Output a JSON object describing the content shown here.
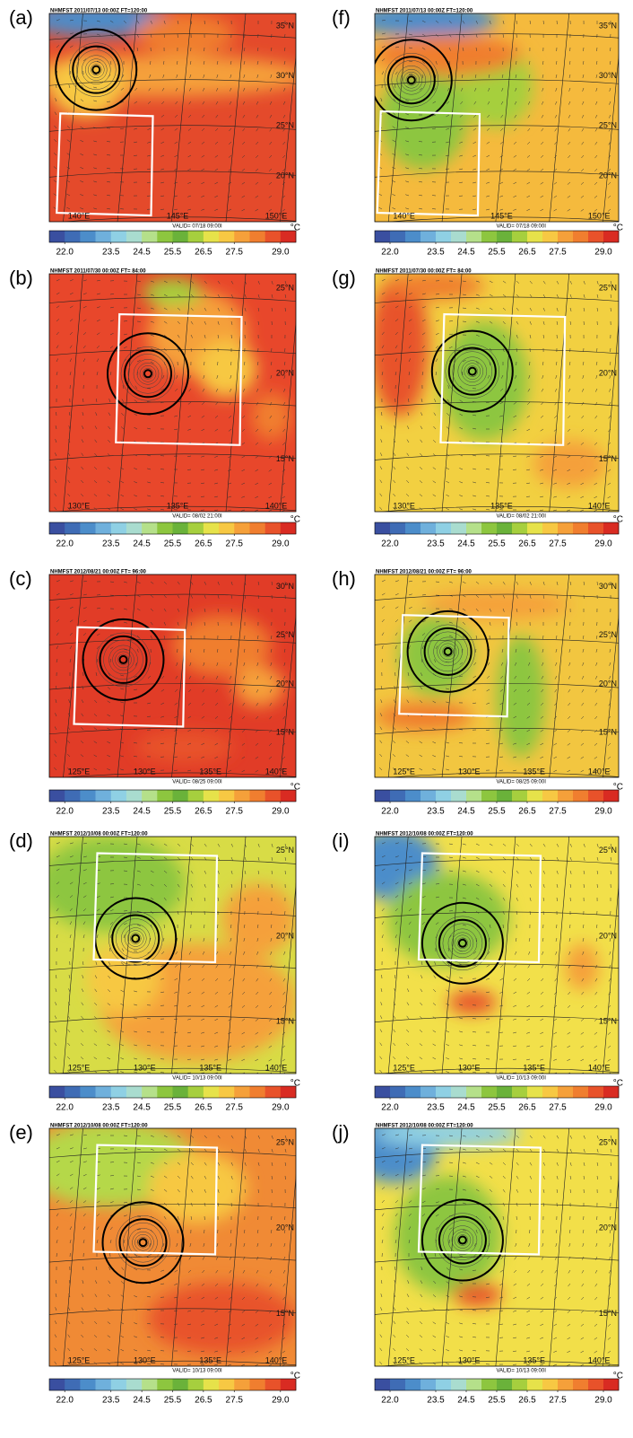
{
  "panels": [
    {
      "label": "(a)",
      "header": "NHMFST 2011/07/13 00:00Z FT=120:00",
      "valid": "VALID= 07/18 09:00I",
      "lat_labels": [
        "35°N",
        "30°N",
        "25°N",
        "20°N"
      ],
      "lon_labels": [
        "140°E",
        "145°E",
        "150°E"
      ]
    },
    {
      "label": "(b)",
      "header": "NHMFST 2011/07/30 00:00Z FT= 84:00",
      "valid": "VALID= 08/02 21:00I",
      "lat_labels": [
        "25°N",
        "20°N",
        "15°N"
      ],
      "lon_labels": [
        "130°E",
        "135°E",
        "140°E"
      ]
    },
    {
      "label": "(c)",
      "header": "NHMFST 2012/08/21 00:00Z FT= 96:00",
      "valid": "VALID= 08/25 09:00I",
      "lat_labels": [
        "30°N",
        "25°N",
        "20°N",
        "15°N"
      ],
      "lon_labels": [
        "125°E",
        "130°E",
        "135°E",
        "140°E"
      ]
    },
    {
      "label": "(d)",
      "header": "NHMFST 2012/10/08 00:00Z FT=120:00",
      "valid": "VALID= 10/13 09:00I",
      "lat_labels": [
        "25°N",
        "20°N",
        "15°N"
      ],
      "lon_labels": [
        "125°E",
        "130°E",
        "135°E",
        "140°E"
      ]
    },
    {
      "label": "(e)",
      "header": "NHMFST 2012/10/08 00:00Z FT=120:00",
      "valid": "VALID= 10/13 09:00I",
      "lat_labels": [
        "25°N",
        "20°N",
        "15°N"
      ],
      "lon_labels": [
        "125°E",
        "130°E",
        "135°E",
        "140°E"
      ]
    },
    {
      "label": "(f)",
      "header": "NHMFST 2011/07/13 00:00Z FT=120:00",
      "valid": "VALID= 07/18 09:00I",
      "lat_labels": [
        "35°N",
        "30°N",
        "25°N",
        "20°N"
      ],
      "lon_labels": [
        "140°E",
        "145°E",
        "150°E"
      ]
    },
    {
      "label": "(g)",
      "header": "NHMFST 2011/07/30 00:00Z FT= 84:00",
      "valid": "VALID= 08/02 21:00I",
      "lat_labels": [
        "25°N",
        "20°N",
        "15°N"
      ],
      "lon_labels": [
        "130°E",
        "135°E",
        "140°E"
      ]
    },
    {
      "label": "(h)",
      "header": "NHMFST 2012/08/21 00:00Z FT= 96:00",
      "valid": "VALID= 08/25 09:00I",
      "lat_labels": [
        "30°N",
        "25°N",
        "20°N",
        "15°N"
      ],
      "lon_labels": [
        "125°E",
        "130°E",
        "135°E",
        "140°E"
      ]
    },
    {
      "label": "(i)",
      "header": "NHMFST 2012/10/08 00:00Z FT=120:00",
      "valid": "VALID= 10/13 09:00I",
      "lat_labels": [
        "25°N",
        "20°N",
        "15°N"
      ],
      "lon_labels": [
        "125°E",
        "130°E",
        "135°E",
        "140°E"
      ]
    },
    {
      "label": "(j)",
      "header": "NHMFST 2012/10/08 00:00Z FT=120:00",
      "valid": "VALID= 10/13 09:00I",
      "lat_labels": [
        "25°N",
        "20°N",
        "15°N"
      ],
      "lon_labels": [
        "125°E",
        "130°E",
        "135°E",
        "140°E"
      ]
    }
  ],
  "colorbar": {
    "range": [
      21.5,
      29.5
    ],
    "ticks": [
      {
        "value": 22,
        "label": "22.0"
      },
      23.5,
      24.5,
      25.5,
      26.5,
      27.5,
      {
        "value": 29,
        "label": "29.0"
      }
    ],
    "unit": "°C",
    "colors": [
      "#3a4fa0",
      "#3f6cb5",
      "#4c8dca",
      "#6fb0dc",
      "#8fd0e4",
      "#a9dccf",
      "#b5e08a",
      "#8dc63f",
      "#6ab23a",
      "#a6cf3e",
      "#e6e24a",
      "#f7c843",
      "#f5a03a",
      "#f07e2f",
      "#e8522a",
      "#d92b22"
    ]
  }
}
